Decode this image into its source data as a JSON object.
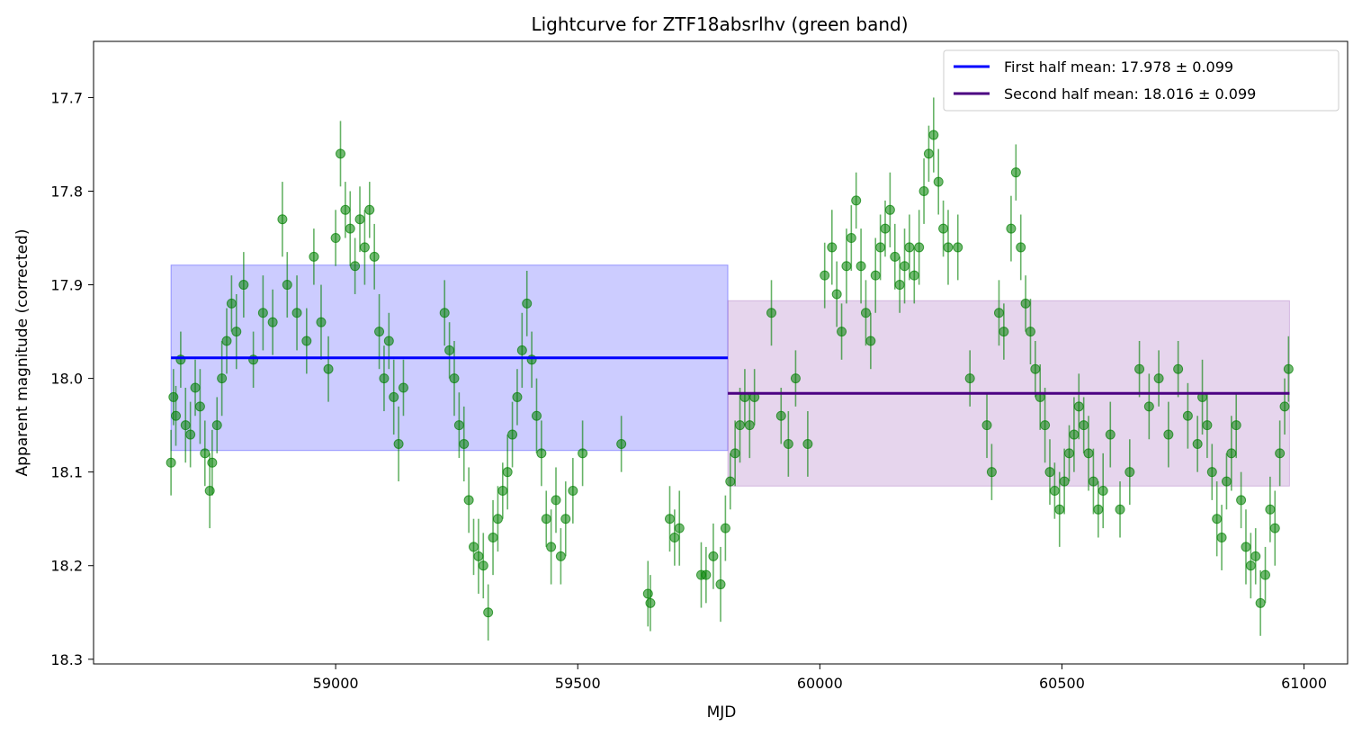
{
  "chart_data": {
    "type": "scatter",
    "title": "Lightcurve for ZTF18absrlhv (green band)",
    "xlabel": "MJD",
    "ylabel": "Apparent magnitude (corrected)",
    "xlim": [
      58500,
      61090
    ],
    "ylim": [
      18.305,
      17.64
    ],
    "y_inverted": true,
    "grid": false,
    "legend_position": "top-right",
    "xticks": [
      59000,
      59500,
      60000,
      60500,
      61000
    ],
    "xtick_labels": [
      "59000",
      "59500",
      "60000",
      "60500",
      "61000"
    ],
    "yticks": [
      17.7,
      17.8,
      17.9,
      18.0,
      18.1,
      18.2,
      18.3
    ],
    "ytick_labels": [
      "17.7",
      "17.8",
      "17.9",
      "18.0",
      "18.1",
      "18.2",
      "18.3"
    ],
    "colors": {
      "points": "#008000",
      "first_mean": "#0000ff",
      "first_band": "#0000ff",
      "second_mean": "#4b0082",
      "second_band": "#9b59b6"
    },
    "reference_lines": [
      {
        "label": "First half mean: 17.978 ± 0.099",
        "mean": 17.978,
        "err": 0.099,
        "x_start": 58660,
        "x_end": 59810
      },
      {
        "label": "Second half mean: 18.016 ± 0.099",
        "mean": 18.016,
        "err": 0.099,
        "x_start": 59810,
        "x_end": 60970
      }
    ],
    "light_curve_points": [
      [
        58660,
        18.09,
        0.035
      ],
      [
        58665,
        18.02,
        0.03
      ],
      [
        58670,
        18.04,
        0.032
      ],
      [
        58680,
        17.98,
        0.03
      ],
      [
        58690,
        18.05,
        0.04
      ],
      [
        58700,
        18.06,
        0.035
      ],
      [
        58710,
        18.01,
        0.03
      ],
      [
        58720,
        18.03,
        0.04
      ],
      [
        58730,
        18.08,
        0.035
      ],
      [
        58740,
        18.12,
        0.04
      ],
      [
        58745,
        18.09,
        0.035
      ],
      [
        58755,
        18.05,
        0.03
      ],
      [
        58765,
        18.0,
        0.04
      ],
      [
        58775,
        17.96,
        0.035
      ],
      [
        58785,
        17.92,
        0.03
      ],
      [
        58795,
        17.95,
        0.04
      ],
      [
        58810,
        17.9,
        0.035
      ],
      [
        58830,
        17.98,
        0.03
      ],
      [
        58850,
        17.93,
        0.04
      ],
      [
        58870,
        17.94,
        0.035
      ],
      [
        58890,
        17.83,
        0.04
      ],
      [
        58900,
        17.9,
        0.035
      ],
      [
        58920,
        17.93,
        0.04
      ],
      [
        58940,
        17.96,
        0.035
      ],
      [
        58955,
        17.87,
        0.03
      ],
      [
        58970,
        17.94,
        0.04
      ],
      [
        58985,
        17.99,
        0.035
      ],
      [
        59000,
        17.85,
        0.03
      ],
      [
        59010,
        17.76,
        0.035
      ],
      [
        59020,
        17.82,
        0.03
      ],
      [
        59030,
        17.84,
        0.04
      ],
      [
        59040,
        17.88,
        0.03
      ],
      [
        59050,
        17.83,
        0.035
      ],
      [
        59060,
        17.86,
        0.04
      ],
      [
        59070,
        17.82,
        0.03
      ],
      [
        59080,
        17.87,
        0.035
      ],
      [
        59090,
        17.95,
        0.04
      ],
      [
        59100,
        18.0,
        0.035
      ],
      [
        59110,
        17.96,
        0.03
      ],
      [
        59120,
        18.02,
        0.04
      ],
      [
        59130,
        18.07,
        0.04
      ],
      [
        59140,
        18.01,
        0.03
      ],
      [
        59225,
        17.93,
        0.035
      ],
      [
        59235,
        17.97,
        0.03
      ],
      [
        59245,
        18.0,
        0.04
      ],
      [
        59255,
        18.05,
        0.035
      ],
      [
        59265,
        18.07,
        0.04
      ],
      [
        59275,
        18.13,
        0.035
      ],
      [
        59285,
        18.18,
        0.03
      ],
      [
        59295,
        18.19,
        0.04
      ],
      [
        59305,
        18.2,
        0.035
      ],
      [
        59315,
        18.25,
        0.03
      ],
      [
        59325,
        18.17,
        0.04
      ],
      [
        59335,
        18.15,
        0.035
      ],
      [
        59345,
        18.12,
        0.03
      ],
      [
        59355,
        18.1,
        0.04
      ],
      [
        59365,
        18.06,
        0.035
      ],
      [
        59375,
        18.02,
        0.03
      ],
      [
        59385,
        17.97,
        0.04
      ],
      [
        59395,
        17.92,
        0.035
      ],
      [
        59405,
        17.98,
        0.03
      ],
      [
        59415,
        18.04,
        0.04
      ],
      [
        59425,
        18.08,
        0.035
      ],
      [
        59435,
        18.15,
        0.03
      ],
      [
        59445,
        18.18,
        0.04
      ],
      [
        59455,
        18.13,
        0.035
      ],
      [
        59465,
        18.19,
        0.03
      ],
      [
        59475,
        18.15,
        0.04
      ],
      [
        59490,
        18.12,
        0.035
      ],
      [
        59510,
        18.08,
        0.035
      ],
      [
        59590,
        18.07,
        0.03
      ],
      [
        59645,
        18.23,
        0.035
      ],
      [
        59650,
        18.24,
        0.03
      ],
      [
        59690,
        18.15,
        0.035
      ],
      [
        59700,
        18.17,
        0.03
      ],
      [
        59710,
        18.16,
        0.04
      ],
      [
        59755,
        18.21,
        0.035
      ],
      [
        59765,
        18.21,
        0.03
      ],
      [
        59780,
        18.19,
        0.035
      ],
      [
        59795,
        18.22,
        0.04
      ],
      [
        59805,
        18.16,
        0.035
      ],
      [
        59815,
        18.11,
        0.03
      ],
      [
        59825,
        18.08,
        0.035
      ],
      [
        59835,
        18.05,
        0.04
      ],
      [
        59845,
        18.02,
        0.03
      ],
      [
        59855,
        18.05,
        0.035
      ],
      [
        59865,
        18.02,
        0.03
      ],
      [
        59900,
        17.93,
        0.035
      ],
      [
        59920,
        18.04,
        0.03
      ],
      [
        59935,
        18.07,
        0.035
      ],
      [
        59950,
        18.0,
        0.03
      ],
      [
        59975,
        18.07,
        0.035
      ],
      [
        60010,
        17.89,
        0.035
      ],
      [
        60025,
        17.86,
        0.04
      ],
      [
        60035,
        17.91,
        0.035
      ],
      [
        60045,
        17.95,
        0.03
      ],
      [
        60055,
        17.88,
        0.04
      ],
      [
        60065,
        17.85,
        0.035
      ],
      [
        60075,
        17.81,
        0.03
      ],
      [
        60085,
        17.88,
        0.04
      ],
      [
        60095,
        17.93,
        0.035
      ],
      [
        60105,
        17.96,
        0.03
      ],
      [
        60115,
        17.89,
        0.04
      ],
      [
        60125,
        17.86,
        0.035
      ],
      [
        60135,
        17.84,
        0.03
      ],
      [
        60145,
        17.82,
        0.04
      ],
      [
        60155,
        17.87,
        0.035
      ],
      [
        60165,
        17.9,
        0.03
      ],
      [
        60175,
        17.88,
        0.04
      ],
      [
        60185,
        17.86,
        0.035
      ],
      [
        60195,
        17.89,
        0.03
      ],
      [
        60205,
        17.86,
        0.04
      ],
      [
        60215,
        17.8,
        0.035
      ],
      [
        60225,
        17.76,
        0.03
      ],
      [
        60235,
        17.74,
        0.04
      ],
      [
        60245,
        17.79,
        0.035
      ],
      [
        60255,
        17.84,
        0.03
      ],
      [
        60265,
        17.86,
        0.04
      ],
      [
        60285,
        17.86,
        0.035
      ],
      [
        60310,
        18.0,
        0.03
      ],
      [
        60345,
        18.05,
        0.035
      ],
      [
        60355,
        18.1,
        0.03
      ],
      [
        60370,
        17.93,
        0.035
      ],
      [
        60380,
        17.95,
        0.03
      ],
      [
        60395,
        17.84,
        0.035
      ],
      [
        60405,
        17.78,
        0.03
      ],
      [
        60415,
        17.86,
        0.035
      ],
      [
        60425,
        17.92,
        0.03
      ],
      [
        60435,
        17.95,
        0.035
      ],
      [
        60445,
        17.99,
        0.03
      ],
      [
        60455,
        18.02,
        0.035
      ],
      [
        60465,
        18.05,
        0.04
      ],
      [
        60475,
        18.1,
        0.035
      ],
      [
        60485,
        18.12,
        0.03
      ],
      [
        60495,
        18.14,
        0.04
      ],
      [
        60505,
        18.11,
        0.035
      ],
      [
        60515,
        18.08,
        0.03
      ],
      [
        60525,
        18.06,
        0.04
      ],
      [
        60535,
        18.03,
        0.035
      ],
      [
        60545,
        18.05,
        0.03
      ],
      [
        60555,
        18.08,
        0.04
      ],
      [
        60565,
        18.11,
        0.035
      ],
      [
        60575,
        18.14,
        0.03
      ],
      [
        60585,
        18.12,
        0.04
      ],
      [
        60600,
        18.06,
        0.035
      ],
      [
        60620,
        18.14,
        0.03
      ],
      [
        60640,
        18.1,
        0.035
      ],
      [
        60660,
        17.99,
        0.03
      ],
      [
        60680,
        18.03,
        0.035
      ],
      [
        60700,
        18.0,
        0.03
      ],
      [
        60720,
        18.06,
        0.035
      ],
      [
        60740,
        17.99,
        0.03
      ],
      [
        60760,
        18.04,
        0.035
      ],
      [
        60780,
        18.07,
        0.03
      ],
      [
        60790,
        18.02,
        0.04
      ],
      [
        60800,
        18.05,
        0.035
      ],
      [
        60810,
        18.1,
        0.03
      ],
      [
        60820,
        18.15,
        0.04
      ],
      [
        60830,
        18.17,
        0.035
      ],
      [
        60840,
        18.11,
        0.03
      ],
      [
        60850,
        18.08,
        0.04
      ],
      [
        60860,
        18.05,
        0.035
      ],
      [
        60870,
        18.13,
        0.03
      ],
      [
        60880,
        18.18,
        0.04
      ],
      [
        60890,
        18.2,
        0.035
      ],
      [
        60900,
        18.19,
        0.03
      ],
      [
        60910,
        18.24,
        0.035
      ],
      [
        60920,
        18.21,
        0.03
      ],
      [
        60930,
        18.14,
        0.035
      ],
      [
        60940,
        18.16,
        0.04
      ],
      [
        60950,
        18.08,
        0.035
      ],
      [
        60960,
        18.03,
        0.03
      ],
      [
        60968,
        17.99,
        0.035
      ]
    ]
  }
}
